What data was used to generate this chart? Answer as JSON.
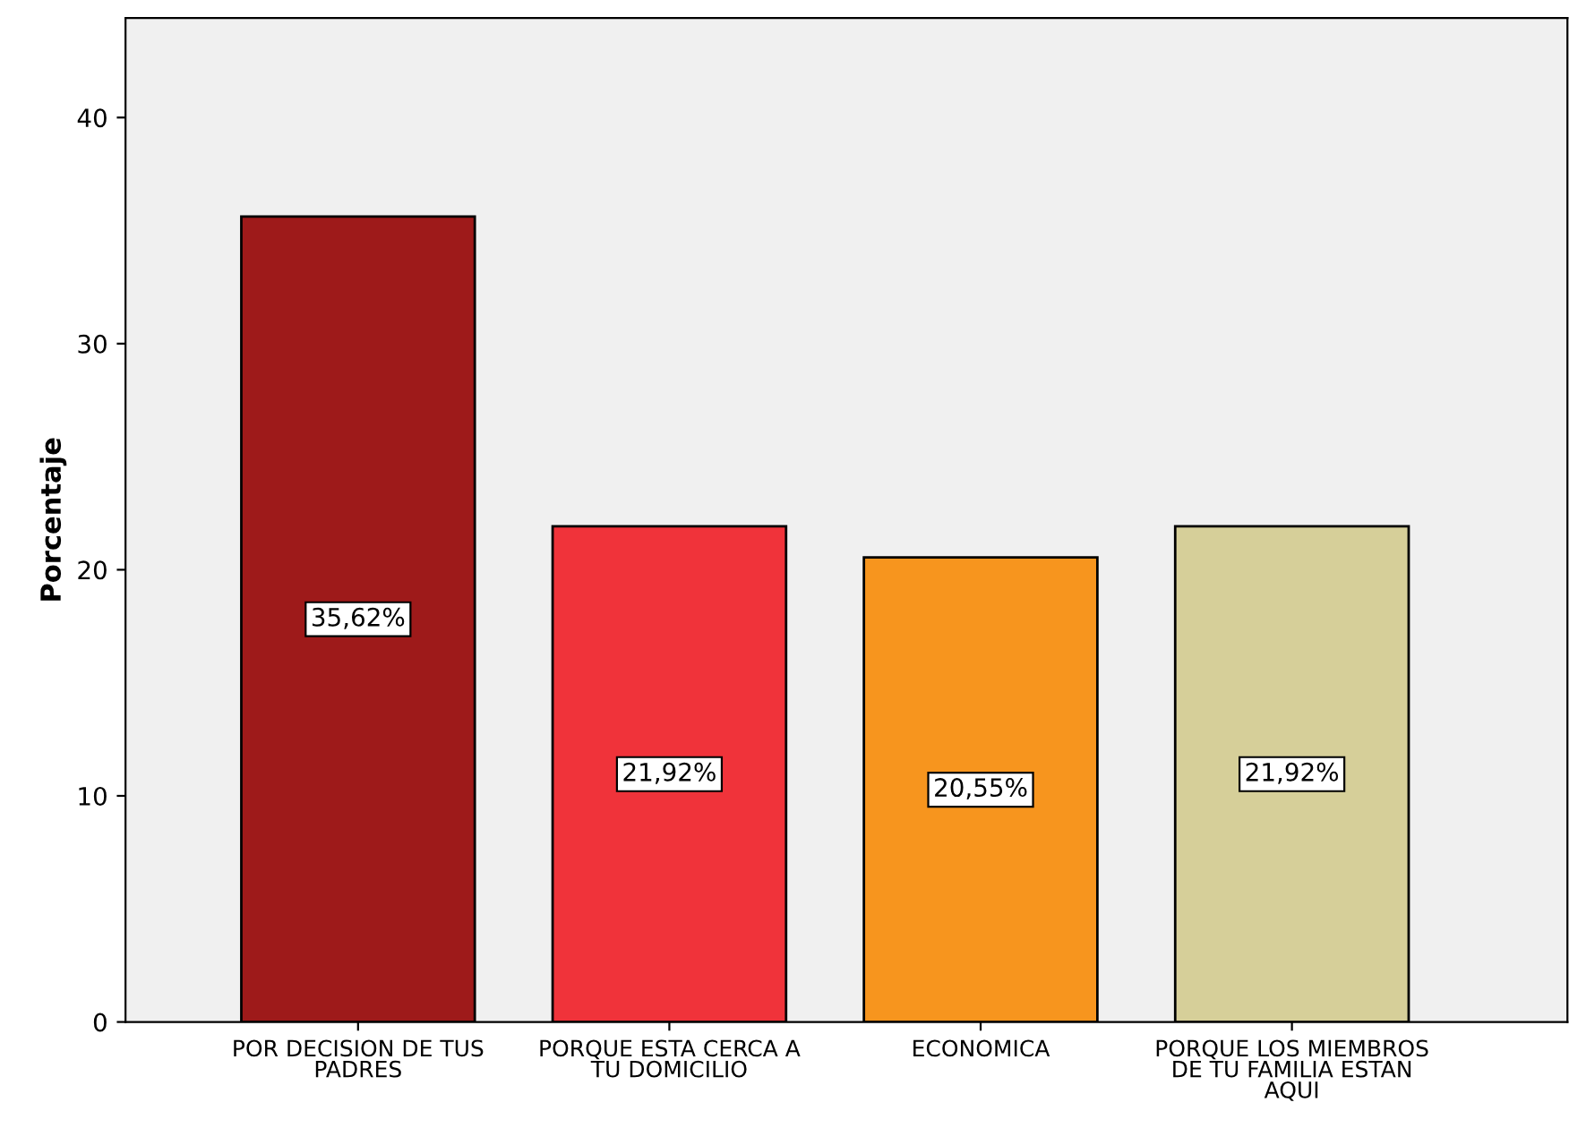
{
  "chart_data": {
    "type": "bar",
    "ylabel": "Porcentaje",
    "categories": [
      "POR DECISION DE TUS PADRES",
      "PORQUE ESTA CERCA A TU DOMICILIO",
      "ECONOMICA",
      "PORQUE LOS MIEMBROS DE TU FAMILIA ESTAN AQUI"
    ],
    "values": [
      35.62,
      21.92,
      20.55,
      21.92
    ],
    "colors": [
      "#9e1a1a",
      "#f0333a",
      "#f7951e",
      "#d6cf99"
    ],
    "value_labels": [
      "35,62%",
      "21,92%",
      "20,55%",
      "21,92%"
    ],
    "ylim": [
      0,
      44.4
    ],
    "yticks": [
      0,
      10,
      20,
      30,
      40
    ],
    "grid": false,
    "legend": false
  }
}
